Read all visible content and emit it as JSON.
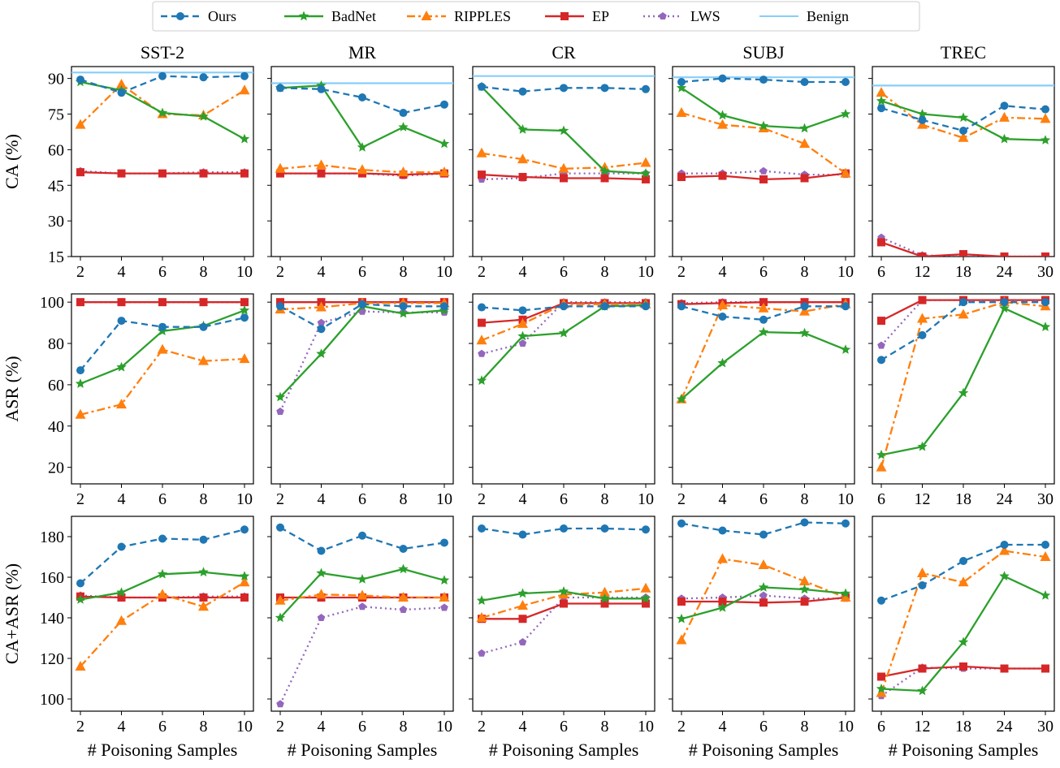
{
  "chart_data": {
    "type": "line",
    "layout": "3 rows x 5 columns",
    "legend": {
      "position": "top-center",
      "entries": [
        {
          "key": "ours",
          "label": "Ours",
          "color": "#1f77b4",
          "style": "dashed",
          "marker": "circle"
        },
        {
          "key": "badnet",
          "label": "BadNet",
          "color": "#2ca02c",
          "style": "solid",
          "marker": "star"
        },
        {
          "key": "ripples",
          "label": "RIPPLES",
          "color": "#ff7f0e",
          "style": "dashdot",
          "marker": "triangle"
        },
        {
          "key": "ep",
          "label": "EP",
          "color": "#d62728",
          "style": "solid",
          "marker": "square"
        },
        {
          "key": "lws",
          "label": "LWS",
          "color": "#9467bd",
          "style": "dotted",
          "marker": "pentagon"
        },
        {
          "key": "benign",
          "label": "Benign",
          "color": "#87cefa",
          "style": "solid",
          "marker": "none"
        }
      ]
    },
    "columns": [
      {
        "title": "SST-2",
        "x": [
          "2",
          "4",
          "6",
          "8",
          "10"
        ]
      },
      {
        "title": "MR",
        "x": [
          "2",
          "4",
          "6",
          "8",
          "10"
        ]
      },
      {
        "title": "CR",
        "x": [
          "2",
          "4",
          "6",
          "8",
          "10"
        ]
      },
      {
        "title": "SUBJ",
        "x": [
          "2",
          "4",
          "6",
          "8",
          "10"
        ]
      },
      {
        "title": "TREC",
        "x": [
          "6",
          "12",
          "18",
          "24",
          "30"
        ]
      }
    ],
    "xlabel": "# Poisoning Samples",
    "rows": [
      {
        "ylabel": "CA (%)",
        "ylim": [
          15,
          95
        ],
        "yticks": [
          "15",
          "30",
          "45",
          "60",
          "75",
          "90"
        ],
        "panels": [
          {
            "benign": 92.5,
            "series": {
              "ours": [
                89.5,
                84,
                91,
                90.5,
                91
              ],
              "badnet": [
                88.5,
                85,
                75.5,
                74,
                64.5
              ],
              "ripples": [
                70.5,
                87.5,
                75,
                74.5,
                85
              ],
              "ep": [
                50.5,
                50,
                50,
                50,
                50
              ],
              "lws": [
                51,
                50,
                50,
                50.5,
                50.5
              ]
            }
          },
          {
            "benign": 88,
            "series": {
              "ours": [
                86,
                85.5,
                82,
                75.5,
                79
              ],
              "badnet": [
                86,
                87,
                61,
                69.5,
                62.5
              ],
              "ripples": [
                52,
                53.5,
                51.5,
                50.5,
                50.5
              ],
              "ep": [
                50,
                50,
                50,
                49.5,
                50
              ],
              "lws": [
                50,
                50,
                50,
                49,
                50
              ]
            }
          },
          {
            "benign": 91,
            "series": {
              "ours": [
                86.5,
                84.5,
                86,
                86,
                85.5
              ],
              "badnet": [
                86.5,
                68.5,
                68,
                51,
                50
              ],
              "ripples": [
                58.5,
                56,
                52,
                52.5,
                54.5
              ],
              "ep": [
                49.5,
                48.5,
                48,
                48,
                47.5
              ],
              "lws": [
                47.5,
                48,
                50,
                50,
                50
              ]
            }
          },
          {
            "benign": 90.5,
            "series": {
              "ours": [
                88.5,
                90,
                89.5,
                88.5,
                88.5
              ],
              "badnet": [
                86,
                74.5,
                70,
                69,
                75
              ],
              "ripples": [
                75.5,
                70.5,
                69,
                62.5,
                50
              ],
              "ep": [
                48.5,
                49,
                47.5,
                48,
                50
              ],
              "lws": [
                50,
                50,
                51,
                49.5,
                49.5
              ]
            }
          },
          {
            "benign": 87,
            "series": {
              "ours": [
                77.5,
                72.5,
                68,
                78.5,
                77
              ],
              "badnet": [
                80.5,
                75,
                73.5,
                64.5,
                64
              ],
              "ripples": [
                84,
                70.5,
                65,
                73.5,
                73
              ],
              "ep": [
                21,
                15,
                16,
                15,
                15
              ],
              "lws": [
                23,
                15.5,
                15,
                15,
                15
              ]
            }
          }
        ]
      },
      {
        "ylabel": "ASR (%)",
        "ylim": [
          12,
          104
        ],
        "yticks": [
          "20",
          "40",
          "60",
          "80",
          "100"
        ],
        "panels": [
          {
            "series": {
              "ours": [
                67,
                91,
                88,
                88,
                92.5
              ],
              "badnet": [
                60.5,
                68.5,
                86,
                88.5,
                96
              ],
              "ripples": [
                45.5,
                50.5,
                77,
                71.5,
                72.5
              ],
              "ep": [
                100,
                100,
                100,
                100,
                100
              ],
              "lws": [
                100,
                100,
                100,
                100,
                100
              ]
            }
          },
          {
            "series": {
              "ours": [
                98,
                87,
                99,
                98,
                98
              ],
              "badnet": [
                54,
                75,
                98,
                94.5,
                96
              ],
              "ripples": [
                96.5,
                97.5,
                99.5,
                99.5,
                99.5
              ],
              "ep": [
                100,
                100,
                100,
                100,
                100
              ],
              "lws": [
                47,
                90,
                95.5,
                95,
                95
              ]
            }
          },
          {
            "series": {
              "ours": [
                97.5,
                96,
                98,
                98,
                98
              ],
              "badnet": [
                62,
                83.5,
                85,
                98,
                98.5
              ],
              "ripples": [
                81.5,
                89.5,
                99,
                99,
                99
              ],
              "ep": [
                90,
                91.5,
                99.5,
                99.5,
                99.5
              ],
              "lws": [
                75,
                80,
                100,
                100,
                100
              ]
            }
          },
          {
            "series": {
              "ours": [
                98,
                93,
                91.5,
                98,
                98
              ],
              "badnet": [
                53,
                70.5,
                85.5,
                85,
                77
              ],
              "ripples": [
                53,
                98.5,
                97,
                95.5,
                99
              ],
              "ep": [
                99,
                99.5,
                100,
                100,
                100
              ],
              "lws": [
                99.5,
                100,
                100,
                100,
                100
              ]
            }
          },
          {
            "series": {
              "ours": [
                72,
                84,
                100,
                100,
                100
              ],
              "badnet": [
                26,
                30,
                56,
                97,
                88
              ],
              "ripples": [
                20,
                92,
                94,
                100,
                98
              ],
              "ep": [
                91,
                101,
                101,
                101,
                101
              ],
              "lws": [
                79,
                101,
                101,
                101,
                101
              ]
            }
          }
        ]
      },
      {
        "ylabel": "CA+ASR (%)",
        "ylim": [
          94,
          190
        ],
        "yticks": [
          "100",
          "120",
          "140",
          "160",
          "180"
        ],
        "panels": [
          {
            "series": {
              "ours": [
                157,
                175,
                179,
                178.5,
                183.5
              ],
              "badnet": [
                149,
                152.5,
                161.5,
                162.5,
                160.5
              ],
              "ripples": [
                116,
                138.5,
                151.5,
                145.5,
                157.5
              ],
              "ep": [
                150.5,
                150,
                150,
                150,
                150
              ],
              "lws": [
                151,
                150,
                150,
                150.5,
                150.5
              ]
            }
          },
          {
            "series": {
              "ours": [
                184.5,
                173,
                180.5,
                174,
                177
              ],
              "badnet": [
                140,
                162,
                159,
                164,
                158.5
              ],
              "ripples": [
                148.5,
                151.5,
                151,
                150,
                150
              ],
              "ep": [
                150,
                150,
                150,
                150,
                150
              ],
              "lws": [
                97.5,
                140,
                145.5,
                144,
                145
              ]
            }
          },
          {
            "series": {
              "ours": [
                184,
                181,
                184,
                184,
                183.5
              ],
              "badnet": [
                148.5,
                152,
                153,
                149.5,
                149.5
              ],
              "ripples": [
                140,
                146,
                151.5,
                152.5,
                154.5
              ],
              "ep": [
                139.5,
                139.5,
                147,
                147,
                147
              ],
              "lws": [
                122.5,
                128,
                150,
                150,
                150
              ]
            }
          },
          {
            "series": {
              "ours": [
                186.5,
                183,
                181,
                187,
                186.5
              ],
              "badnet": [
                139.5,
                145,
                155,
                154,
                152
              ],
              "ripples": [
                129,
                169,
                166,
                158,
                150
              ],
              "ep": [
                148,
                148,
                147.5,
                148,
                150
              ],
              "lws": [
                149.5,
                150,
                151,
                149.5,
                149.5
              ]
            }
          },
          {
            "series": {
              "ours": [
                148.5,
                156,
                168,
                176,
                176
              ],
              "badnet": [
                105,
                104,
                128,
                160.5,
                151
              ],
              "ripples": [
                103,
                162,
                157.5,
                173,
                170
              ],
              "ep": [
                111,
                115,
                116,
                115,
                115
              ],
              "lws": [
                101.5,
                115.5,
                115,
                115,
                115
              ]
            }
          }
        ]
      }
    ]
  }
}
